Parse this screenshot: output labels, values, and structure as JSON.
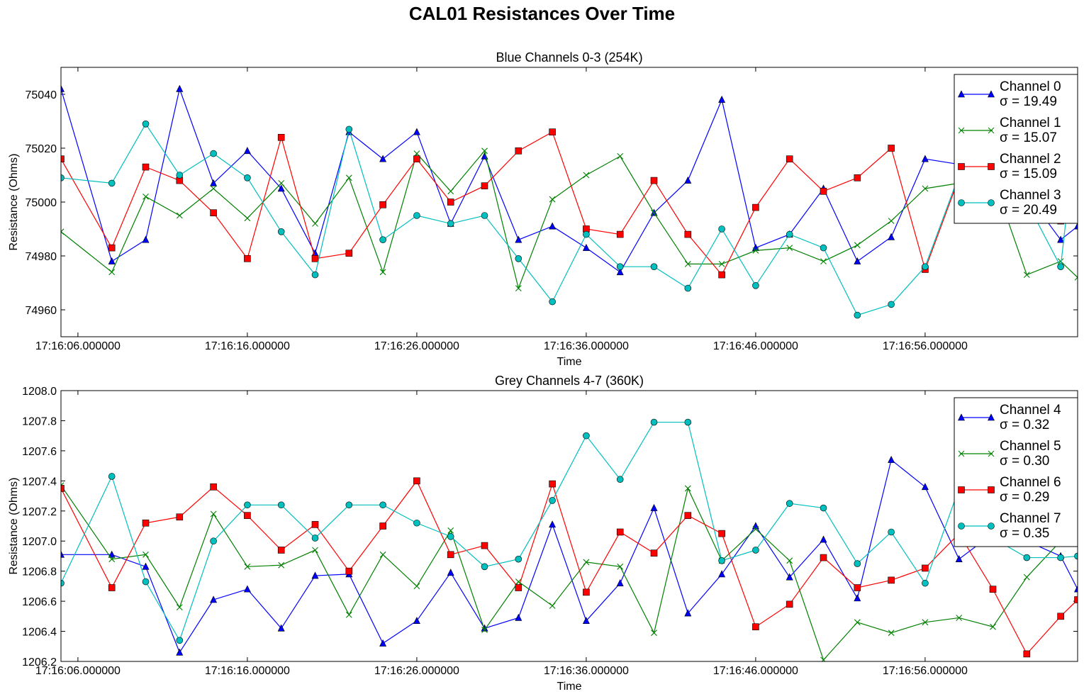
{
  "figure": {
    "title": "CAL01 Resistances Over Time"
  },
  "chart_data": [
    {
      "type": "line",
      "title": "Blue Channels 0-3 (254K)",
      "xlabel": "Time",
      "ylabel": "Resistance (Ohms)",
      "xlim": [
        "17:16:05",
        "17:17:05"
      ],
      "ylim": [
        74950,
        75050
      ],
      "yticks": [
        74960,
        74980,
        75000,
        75020,
        75040
      ],
      "xticks": [
        "17:16:06.000000",
        "17:16:16.000000",
        "17:16:26.000000",
        "17:16:36.000000",
        "17:16:46.000000",
        "17:16:56.000000"
      ],
      "grid": false,
      "legend_position": "top-right",
      "x": [
        "17:16:05",
        "17:16:08",
        "17:16:10",
        "17:16:12",
        "17:16:14",
        "17:16:16",
        "17:16:18",
        "17:16:20",
        "17:16:22",
        "17:16:24",
        "17:16:26",
        "17:16:28",
        "17:16:30",
        "17:16:32",
        "17:16:34",
        "17:16:36",
        "17:16:38",
        "17:16:40",
        "17:16:42",
        "17:16:44",
        "17:16:46",
        "17:16:48",
        "17:16:50",
        "17:16:52",
        "17:16:54",
        "17:16:56",
        "17:16:58",
        "17:17:00",
        "17:17:02",
        "17:17:04",
        "17:17:05"
      ],
      "series": [
        {
          "name": "Channel 0",
          "label2": "σ = 19.49",
          "color": "#0000ff",
          "marker": "triangle",
          "values": [
            75042,
            74978,
            74986,
            75042,
            75007,
            75019,
            75005,
            74981,
            75026,
            75016,
            75026,
            74992,
            75017,
            74986,
            74991,
            74983,
            74974,
            74996,
            75008,
            75038,
            74983,
            74988,
            75005,
            74978,
            74987,
            75016,
            75014,
            75012,
            75003,
            74986,
            74991
          ]
        },
        {
          "name": "Channel 1",
          "label2": "σ = 15.07",
          "color": "#008000",
          "marker": "x",
          "values": [
            74989,
            74974,
            75002,
            74995,
            75005,
            74994,
            75007,
            74992,
            75009,
            74974,
            75018,
            75004,
            75019,
            74968,
            75001,
            75010,
            75017,
            74996,
            74977,
            74977,
            74982,
            74983,
            74978,
            74984,
            74993,
            75005,
            75007,
            75009,
            74973,
            74978,
            74972
          ]
        },
        {
          "name": "Channel 2",
          "label2": "σ = 15.09",
          "color": "#ff0000",
          "marker": "square",
          "values": [
            75016,
            74983,
            75013,
            75008,
            74996,
            74979,
            75024,
            74979,
            74981,
            74999,
            75016,
            75000,
            75006,
            75019,
            75026,
            74990,
            74988,
            75008,
            74988,
            74973,
            74998,
            75016,
            75004,
            75009,
            75020,
            74975,
            75009,
            75010,
            75004,
            74993,
            75010
          ]
        },
        {
          "name": "Channel 3",
          "label2": "σ = 20.49",
          "color": "#00bfbf",
          "marker": "circle",
          "values": [
            75009,
            75007,
            75029,
            75010,
            75018,
            75009,
            74989,
            74973,
            75027,
            74986,
            74995,
            74992,
            74995,
            74979,
            74963,
            74988,
            74976,
            74976,
            74968,
            74990,
            74969,
            74988,
            74983,
            74958,
            74962,
            74976,
            75010,
            75005,
            75000,
            74976,
            75032
          ]
        }
      ]
    },
    {
      "type": "line",
      "title": "Grey Channels 4-7 (360K)",
      "xlabel": "Time",
      "ylabel": "Resistance (Ohms)",
      "xlim": [
        "17:16:05",
        "17:17:05"
      ],
      "ylim": [
        1206.2,
        1208.0
      ],
      "yticks": [
        "1206.2",
        "1206.4",
        "1206.6",
        "1206.8",
        "1207.0",
        "1207.2",
        "1207.4",
        "1207.6",
        "1207.8",
        "1208.0"
      ],
      "xticks": [
        "17:16:06.000000",
        "17:16:16.000000",
        "17:16:26.000000",
        "17:16:36.000000",
        "17:16:46.000000",
        "17:16:56.000000"
      ],
      "grid": false,
      "legend_position": "top-right",
      "x": [
        "17:16:05",
        "17:16:08",
        "17:16:10",
        "17:16:12",
        "17:16:14",
        "17:16:16",
        "17:16:18",
        "17:16:20",
        "17:16:22",
        "17:16:24",
        "17:16:26",
        "17:16:28",
        "17:16:30",
        "17:16:32",
        "17:16:34",
        "17:16:36",
        "17:16:38",
        "17:16:40",
        "17:16:42",
        "17:16:44",
        "17:16:46",
        "17:16:48",
        "17:16:50",
        "17:16:52",
        "17:16:54",
        "17:16:56",
        "17:16:58",
        "17:17:00",
        "17:17:02",
        "17:17:04",
        "17:17:05"
      ],
      "series": [
        {
          "name": "Channel 4",
          "label2": "σ = 0.32",
          "color": "#0000ff",
          "marker": "triangle",
          "values": [
            1206.91,
            1206.91,
            1206.83,
            1206.26,
            1206.61,
            1206.68,
            1206.42,
            1206.77,
            1206.78,
            1206.32,
            1206.47,
            1206.79,
            1206.42,
            1206.49,
            1207.11,
            1206.47,
            1206.72,
            1207.22,
            1206.52,
            1206.78,
            1207.1,
            1206.76,
            1207.01,
            1206.62,
            1207.54,
            1207.36,
            1206.88,
            1207.05,
            1207.0,
            1206.9,
            1206.68
          ]
        },
        {
          "name": "Channel 5",
          "label2": "σ = 0.30",
          "color": "#008000",
          "marker": "x",
          "values": [
            1207.37,
            1206.88,
            1206.91,
            1206.56,
            1207.18,
            1206.83,
            1206.84,
            1206.94,
            1206.51,
            1206.91,
            1206.7,
            1207.07,
            1206.41,
            1206.73,
            1206.57,
            1206.86,
            1206.83,
            1206.39,
            1207.35,
            1206.87,
            1207.08,
            1206.87,
            1206.21,
            1206.46,
            1206.39,
            1206.46,
            1206.49,
            1206.43,
            1206.76,
            1207.0,
            1207.25
          ]
        },
        {
          "name": "Channel 6",
          "label2": "σ = 0.29",
          "color": "#ff0000",
          "marker": "square",
          "values": [
            1207.35,
            1206.69,
            1207.12,
            1207.16,
            1207.36,
            1207.17,
            1206.94,
            1207.11,
            1206.8,
            1207.1,
            1207.4,
            1206.91,
            1206.97,
            1206.69,
            1207.38,
            1206.66,
            1207.06,
            1206.92,
            1207.17,
            1207.05,
            1206.43,
            1206.58,
            1206.89,
            1206.69,
            1206.74,
            1206.82,
            1207.05,
            1206.68,
            1206.25,
            1206.5,
            1206.61
          ]
        },
        {
          "name": "Channel 7",
          "label2": "σ = 0.35",
          "color": "#00bfbf",
          "marker": "circle",
          "values": [
            1206.72,
            1207.43,
            1206.73,
            1206.34,
            1207.0,
            1207.24,
            1207.24,
            1207.02,
            1207.24,
            1207.24,
            1207.12,
            1207.03,
            1206.83,
            1206.88,
            1207.27,
            1207.7,
            1207.41,
            1207.79,
            1207.79,
            1206.87,
            1206.94,
            1207.25,
            1207.22,
            1206.85,
            1207.06,
            1206.72,
            1207.35,
            1207.02,
            1206.89,
            1206.89,
            1206.9
          ]
        }
      ]
    }
  ]
}
